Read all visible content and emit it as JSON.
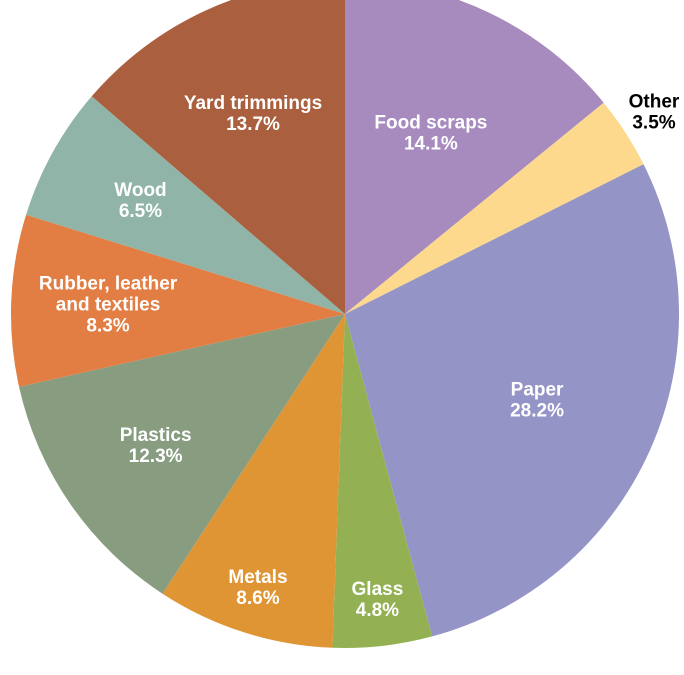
{
  "chart_data": {
    "type": "pie",
    "start_angle_deg": 0,
    "direction": "clockwise",
    "slices": [
      {
        "label": "Food scraps",
        "value": 14.1,
        "display": "14.1%",
        "color": "#a78bbf",
        "label_position": "inside"
      },
      {
        "label": "Other",
        "value": 3.5,
        "display": "3.5%",
        "color": "#fcd98d",
        "label_position": "outside"
      },
      {
        "label": "Paper",
        "value": 28.2,
        "display": "28.2%",
        "color": "#9594c7",
        "label_position": "inside"
      },
      {
        "label": "Glass",
        "value": 4.8,
        "display": "4.8%",
        "color": "#93b153",
        "label_position": "inside"
      },
      {
        "label": "Metals",
        "value": 8.6,
        "display": "8.6%",
        "color": "#e09535",
        "label_position": "inside"
      },
      {
        "label": "Plastics",
        "value": 12.3,
        "display": "12.3%",
        "color": "#889d80",
        "label_position": "inside"
      },
      {
        "label": "Rubber, leather and textiles",
        "value": 8.3,
        "display": "8.3%",
        "color": "#e27d44",
        "label_position": "inside"
      },
      {
        "label": "Wood",
        "value": 6.5,
        "display": "6.5%",
        "color": "#90b4a7",
        "label_position": "inside"
      },
      {
        "label": "Yard trimmings",
        "value": 13.7,
        "display": "13.7%",
        "color": "#aa5f3e",
        "label_position": "inside"
      }
    ]
  }
}
